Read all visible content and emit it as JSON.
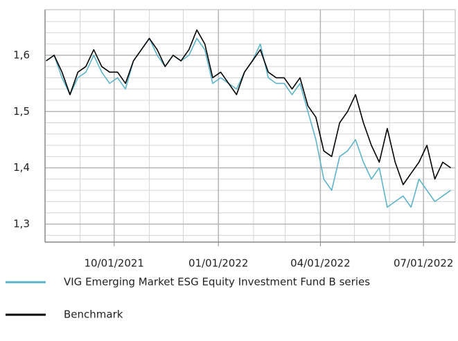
{
  "chart_data": {
    "type": "line",
    "x": [
      "2021-08-02",
      "2021-08-09",
      "2021-08-16",
      "2021-08-23",
      "2021-08-30",
      "2021-09-06",
      "2021-09-13",
      "2021-09-20",
      "2021-09-27",
      "2021-10-04",
      "2021-10-11",
      "2021-10-18",
      "2021-10-25",
      "2021-11-01",
      "2021-11-08",
      "2021-11-15",
      "2021-11-22",
      "2021-11-29",
      "2021-12-06",
      "2021-12-13",
      "2021-12-20",
      "2021-12-27",
      "2022-01-03",
      "2022-01-10",
      "2022-01-17",
      "2022-01-24",
      "2022-01-31",
      "2022-02-07",
      "2022-02-14",
      "2022-02-21",
      "2022-02-28",
      "2022-03-07",
      "2022-03-14",
      "2022-03-21",
      "2022-03-28",
      "2022-04-04",
      "2022-04-11",
      "2022-04-18",
      "2022-04-25",
      "2022-05-02",
      "2022-05-09",
      "2022-05-16",
      "2022-05-23",
      "2022-05-30",
      "2022-06-06",
      "2022-06-13",
      "2022-06-20",
      "2022-06-27",
      "2022-07-04",
      "2022-07-11",
      "2022-07-18",
      "2022-07-25"
    ],
    "series": [
      {
        "name": "VIG Emerging Market ESG Equity Investment Fund B series",
        "color": "#5db3c9",
        "values": [
          1.59,
          1.6,
          1.56,
          1.53,
          1.56,
          1.57,
          1.6,
          1.57,
          1.55,
          1.56,
          1.54,
          1.59,
          1.61,
          1.63,
          1.6,
          1.58,
          1.6,
          1.59,
          1.6,
          1.63,
          1.61,
          1.55,
          1.56,
          1.55,
          1.54,
          1.57,
          1.59,
          1.62,
          1.56,
          1.55,
          1.55,
          1.53,
          1.55,
          1.5,
          1.45,
          1.38,
          1.36,
          1.42,
          1.43,
          1.45,
          1.41,
          1.38,
          1.4,
          1.33,
          1.34,
          1.35,
          1.33,
          1.38,
          1.36,
          1.34,
          1.35,
          1.36
        ]
      },
      {
        "name": "Benchmark",
        "color": "#000000",
        "values": [
          1.59,
          1.6,
          1.57,
          1.53,
          1.57,
          1.58,
          1.61,
          1.58,
          1.57,
          1.57,
          1.55,
          1.59,
          1.61,
          1.63,
          1.61,
          1.58,
          1.6,
          1.59,
          1.61,
          1.645,
          1.62,
          1.56,
          1.57,
          1.55,
          1.53,
          1.57,
          1.59,
          1.61,
          1.57,
          1.56,
          1.56,
          1.54,
          1.56,
          1.51,
          1.49,
          1.43,
          1.42,
          1.48,
          1.5,
          1.53,
          1.48,
          1.44,
          1.41,
          1.47,
          1.41,
          1.37,
          1.39,
          1.41,
          1.44,
          1.38,
          1.41,
          1.4
        ]
      }
    ],
    "xlim": [
      "2021-08-01",
      "2022-07-29"
    ],
    "xticks": [
      {
        "value": "2021-10-01",
        "label": "10/01/2021"
      },
      {
        "value": "2022-01-01",
        "label": "01/01/2022"
      },
      {
        "value": "2022-04-01",
        "label": "04/01/2022"
      },
      {
        "value": "2022-07-01",
        "label": "07/01/2022"
      }
    ],
    "x_minor_ticks": [
      "2021-09-01",
      "2021-11-01",
      "2021-12-01",
      "2022-02-01",
      "2022-03-01",
      "2022-05-01",
      "2022-06-01"
    ],
    "ylim": [
      1.268,
      1.681
    ],
    "yticks": [
      {
        "value": 1.3,
        "label": "1,3"
      },
      {
        "value": 1.4,
        "label": "1,4"
      },
      {
        "value": 1.5,
        "label": "1,5"
      },
      {
        "value": 1.6,
        "label": "1,6"
      }
    ],
    "y_minor_ticks": [
      1.28,
      1.32,
      1.34,
      1.36,
      1.38,
      1.42,
      1.44,
      1.46,
      1.48,
      1.52,
      1.54,
      1.56,
      1.58,
      1.62,
      1.64,
      1.66
    ],
    "grid": true,
    "legend": "bottom"
  }
}
